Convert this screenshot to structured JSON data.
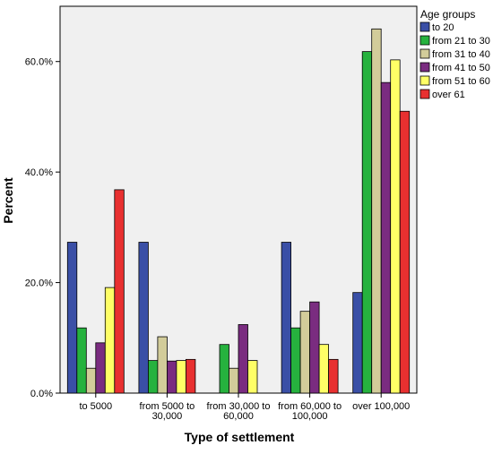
{
  "chart_data": {
    "type": "bar",
    "title": "",
    "xlabel": "Type of settlement",
    "ylabel": "Percent",
    "ylim": [
      0,
      70
    ],
    "yticks": [
      {
        "value": 0,
        "label": "0.0%"
      },
      {
        "value": 20,
        "label": "20.0%"
      },
      {
        "value": 40,
        "label": "40.0%"
      },
      {
        "value": 60,
        "label": "60.0%"
      }
    ],
    "categories": [
      [
        "to  5000"
      ],
      [
        "from 5000 to",
        "30,000"
      ],
      [
        "from 30,000 to",
        "60,000"
      ],
      [
        "from 60,000 to",
        "100,000"
      ],
      [
        "over 100,000"
      ]
    ],
    "legend": {
      "title": "Age groups",
      "position": "top-right"
    },
    "grid": false,
    "series": [
      {
        "name": "to 20",
        "color": "#3a4fa6",
        "values": [
          27.3,
          27.3,
          0,
          27.3,
          18.2
        ]
      },
      {
        "name": "from 21 to 30",
        "color": "#26b23e",
        "values": [
          11.8,
          5.9,
          8.8,
          11.8,
          61.8
        ]
      },
      {
        "name": "from 31 to 40",
        "color": "#d2cc9a",
        "values": [
          4.5,
          10.2,
          4.5,
          14.8,
          65.9
        ]
      },
      {
        "name": "from 41 to 50",
        "color": "#7a2c80",
        "values": [
          9.1,
          5.8,
          12.4,
          16.5,
          56.2
        ]
      },
      {
        "name": "from 51 to 60",
        "color": "#ffff66",
        "values": [
          19.1,
          5.9,
          5.9,
          8.8,
          60.3
        ]
      },
      {
        "name": "over 61",
        "color": "#e83030",
        "values": [
          36.8,
          6.1,
          0,
          6.1,
          51.0
        ]
      }
    ]
  }
}
